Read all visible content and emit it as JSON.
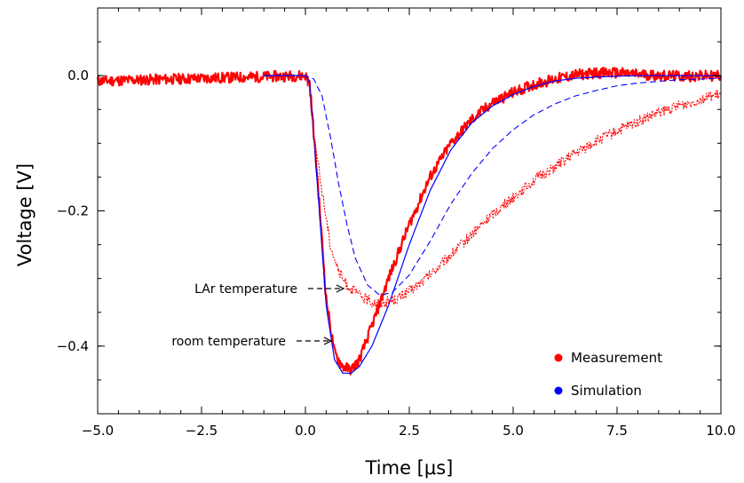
{
  "chart_data": {
    "type": "line",
    "title": "",
    "xlabel": "Time [μs]",
    "ylabel": "Voltage [V]",
    "xlim": [
      -5.0,
      10.0
    ],
    "ylim": [
      -0.5,
      0.1
    ],
    "grid": false,
    "legend_position": "bottom-right",
    "x_ticks": [
      {
        "value": -5.0,
        "label": "−5.0"
      },
      {
        "value": -2.5,
        "label": "−2.5"
      },
      {
        "value": 0.0,
        "label": "0.0"
      },
      {
        "value": 2.5,
        "label": "2.5"
      },
      {
        "value": 5.0,
        "label": "5.0"
      },
      {
        "value": 7.5,
        "label": "7.5"
      },
      {
        "value": 10.0,
        "label": "10.0"
      }
    ],
    "y_ticks": [
      {
        "value": 0.0,
        "label": "0.0"
      },
      {
        "value": -0.2,
        "label": "−0.2"
      },
      {
        "value": -0.4,
        "label": "−0.4"
      }
    ],
    "legend": [
      {
        "label": "Measurement",
        "color": "#ff0000"
      },
      {
        "label": "Simulation",
        "color": "#0000ff"
      }
    ],
    "annotations": [
      {
        "text": "LAr temperature",
        "arrow_to": [
          2.2,
          -0.3
        ]
      },
      {
        "text": "room temperature",
        "arrow_to": [
          1.5,
          -0.4
        ]
      }
    ],
    "series": [
      {
        "condition": "room temperature",
        "kind": "measurement",
        "color": "#ff0000",
        "style": "solid-noisy",
        "x": [
          -5.0,
          -2.5,
          0.0,
          0.1,
          0.3,
          0.5,
          0.7,
          0.9,
          1.1,
          1.3,
          1.6,
          2.0,
          2.5,
          3.0,
          3.5,
          4.0,
          4.5,
          5.0,
          5.5,
          6.0,
          6.5,
          7.0,
          7.5,
          8.0,
          9.0,
          10.0
        ],
        "y": [
          -0.008,
          -0.004,
          0.0,
          -0.01,
          -0.16,
          -0.33,
          -0.41,
          -0.43,
          -0.435,
          -0.42,
          -0.37,
          -0.3,
          -0.22,
          -0.15,
          -0.1,
          -0.065,
          -0.04,
          -0.025,
          -0.013,
          -0.005,
          0.001,
          0.004,
          0.004,
          0.002,
          -0.001,
          0.0
        ]
      },
      {
        "condition": "room temperature",
        "kind": "simulation",
        "color": "#0000ff",
        "style": "solid",
        "x": [
          -1.0,
          0.0,
          0.1,
          0.3,
          0.5,
          0.7,
          0.9,
          1.1,
          1.3,
          1.6,
          2.0,
          2.5,
          3.0,
          3.5,
          4.0,
          4.5,
          5.0,
          5.5,
          6.0,
          6.5,
          7.0,
          7.5,
          8.0,
          9.0,
          10.0
        ],
        "y": [
          0.0,
          0.0,
          -0.01,
          -0.17,
          -0.34,
          -0.42,
          -0.44,
          -0.44,
          -0.43,
          -0.4,
          -0.34,
          -0.25,
          -0.17,
          -0.11,
          -0.07,
          -0.045,
          -0.028,
          -0.016,
          -0.008,
          -0.004,
          -0.002,
          -0.001,
          0.0,
          0.0,
          0.0
        ]
      },
      {
        "condition": "LAr temperature",
        "kind": "measurement",
        "color": "#ff0000",
        "style": "dotted-noisy",
        "x": [
          0.0,
          0.1,
          0.2,
          0.4,
          0.6,
          0.8,
          1.0,
          1.3,
          1.6,
          1.9,
          2.2,
          2.6,
          3.0,
          3.5,
          4.0,
          4.5,
          5.0,
          5.5,
          6.0,
          6.5,
          7.0,
          7.5,
          8.0,
          8.5,
          9.0,
          9.5,
          10.0
        ],
        "y": [
          0.0,
          -0.02,
          -0.09,
          -0.17,
          -0.25,
          -0.29,
          -0.31,
          -0.325,
          -0.335,
          -0.335,
          -0.33,
          -0.315,
          -0.295,
          -0.265,
          -0.235,
          -0.205,
          -0.18,
          -0.155,
          -0.135,
          -0.115,
          -0.097,
          -0.082,
          -0.068,
          -0.055,
          -0.045,
          -0.035,
          -0.028
        ]
      },
      {
        "condition": "LAr temperature",
        "kind": "simulation",
        "color": "#0000ff",
        "style": "dashed",
        "x": [
          -1.0,
          0.0,
          0.2,
          0.4,
          0.6,
          0.8,
          1.0,
          1.2,
          1.5,
          1.8,
          2.1,
          2.5,
          3.0,
          3.5,
          4.0,
          4.5,
          5.0,
          5.5,
          6.0,
          6.5,
          7.0,
          7.5,
          8.0,
          9.0,
          10.0
        ],
        "y": [
          0.0,
          0.0,
          -0.005,
          -0.03,
          -0.09,
          -0.16,
          -0.22,
          -0.27,
          -0.31,
          -0.325,
          -0.32,
          -0.295,
          -0.245,
          -0.19,
          -0.145,
          -0.108,
          -0.08,
          -0.058,
          -0.042,
          -0.03,
          -0.022,
          -0.015,
          -0.011,
          -0.006,
          -0.004
        ]
      }
    ]
  }
}
